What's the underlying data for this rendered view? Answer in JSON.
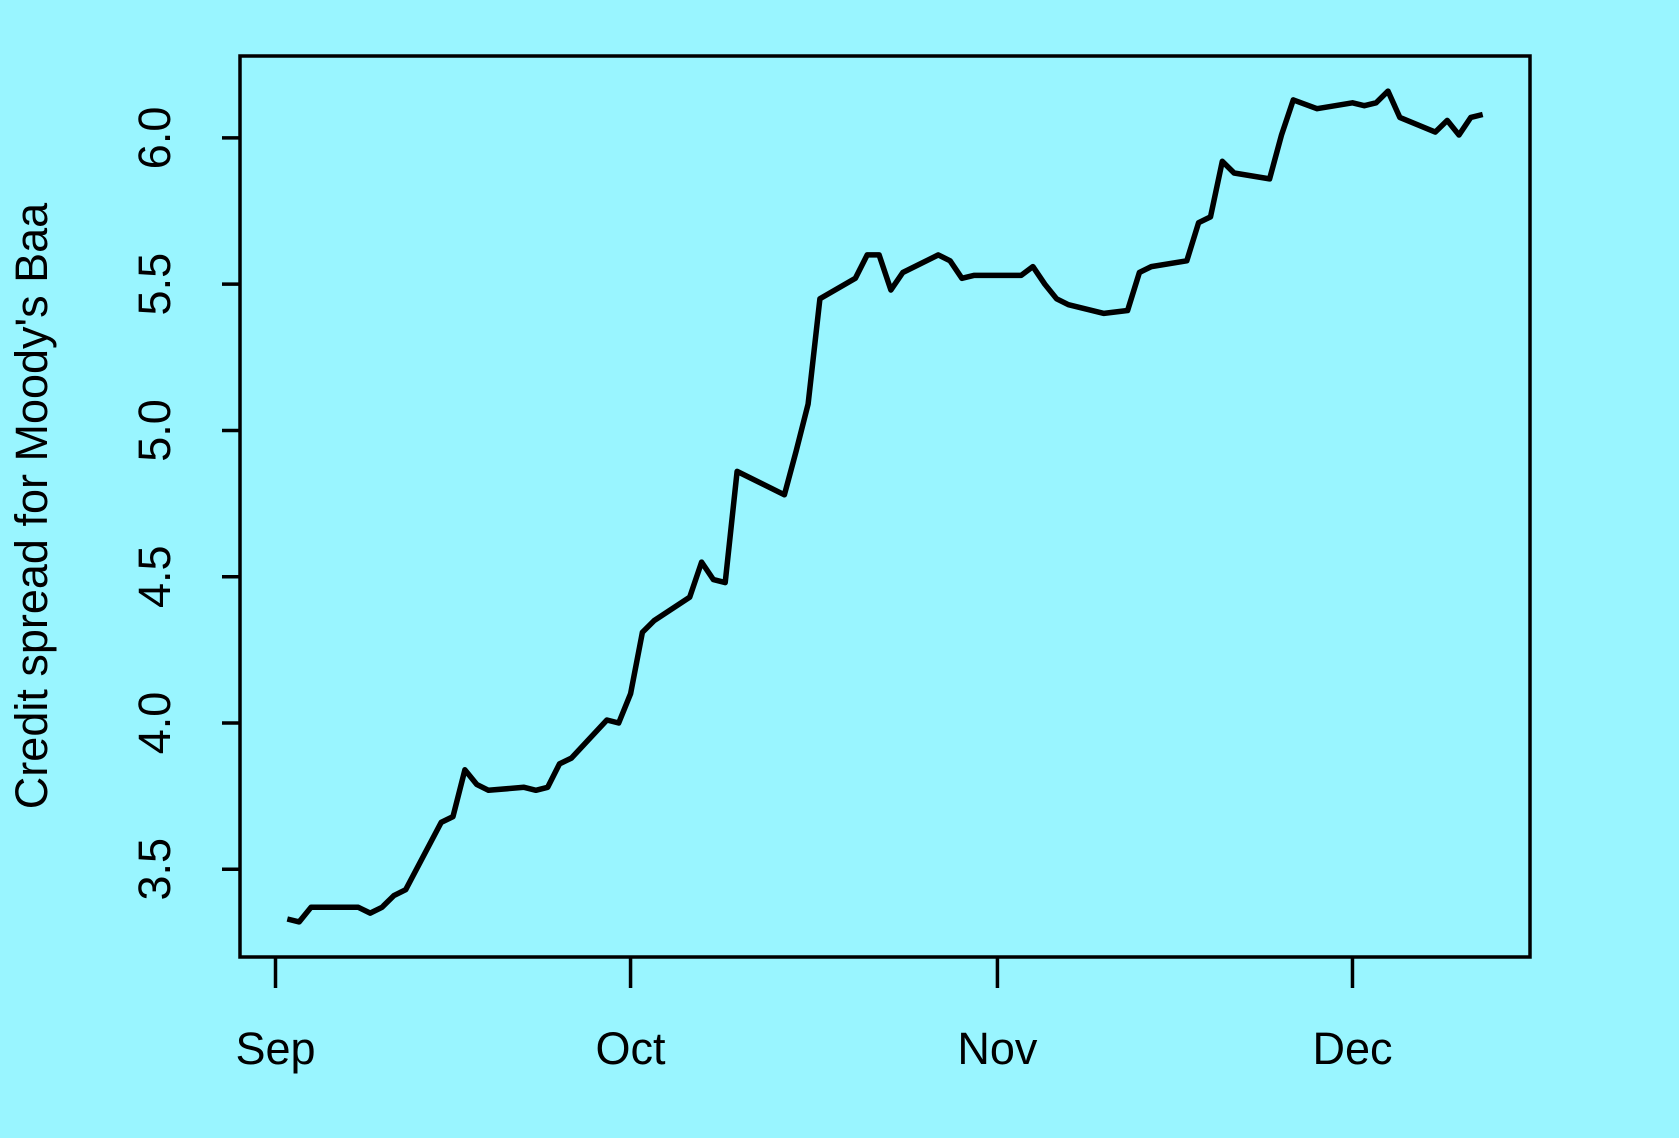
{
  "background_color": "#99F5FF",
  "line_color": "#000000",
  "chart_data": {
    "type": "line",
    "title": "",
    "xlabel": "",
    "ylabel": "Credit spread for Moody's Baa",
    "x_tick_labels": [
      "Sep",
      "Oct",
      "Nov",
      "Dec"
    ],
    "y_tick_labels": [
      "3.5",
      "4.0",
      "4.5",
      "5.0",
      "5.5",
      "6.0"
    ],
    "ylim": [
      3.2,
      6.28
    ],
    "grid": false,
    "legend": "none",
    "series": [
      {
        "x": [
          "2008-09-02",
          "2008-09-03",
          "2008-09-04",
          "2008-09-05",
          "2008-09-08",
          "2008-09-09",
          "2008-09-10",
          "2008-09-11",
          "2008-09-12",
          "2008-09-15",
          "2008-09-16",
          "2008-09-17",
          "2008-09-18",
          "2008-09-19",
          "2008-09-22",
          "2008-09-23",
          "2008-09-24",
          "2008-09-25",
          "2008-09-26",
          "2008-09-29",
          "2008-09-30",
          "2008-10-01",
          "2008-10-02",
          "2008-10-03",
          "2008-10-06",
          "2008-10-07",
          "2008-10-08",
          "2008-10-09",
          "2008-10-10",
          "2008-10-14",
          "2008-10-15",
          "2008-10-16",
          "2008-10-17",
          "2008-10-20",
          "2008-10-21",
          "2008-10-22",
          "2008-10-23",
          "2008-10-24",
          "2008-10-27",
          "2008-10-28",
          "2008-10-29",
          "2008-10-30",
          "2008-10-31",
          "2008-11-03",
          "2008-11-04",
          "2008-11-05",
          "2008-11-06",
          "2008-11-07",
          "2008-11-10",
          "2008-11-12",
          "2008-11-13",
          "2008-11-14",
          "2008-11-17",
          "2008-11-18",
          "2008-11-19",
          "2008-11-20",
          "2008-11-21",
          "2008-11-24",
          "2008-11-25",
          "2008-11-26",
          "2008-11-28",
          "2008-12-01",
          "2008-12-02",
          "2008-12-03",
          "2008-12-04",
          "2008-12-05",
          "2008-12-08",
          "2008-12-09",
          "2008-12-10",
          "2008-12-11",
          "2008-12-12"
        ],
        "y": [
          3.33,
          3.32,
          3.37,
          3.37,
          3.37,
          3.35,
          3.37,
          3.41,
          3.43,
          3.66,
          3.68,
          3.84,
          3.79,
          3.77,
          3.78,
          3.77,
          3.78,
          3.86,
          3.88,
          4.01,
          4.0,
          4.1,
          4.31,
          4.35,
          4.43,
          4.55,
          4.49,
          4.48,
          4.86,
          4.78,
          4.93,
          5.09,
          5.45,
          5.52,
          5.6,
          5.6,
          5.48,
          5.54,
          5.6,
          5.58,
          5.52,
          5.53,
          5.53,
          5.53,
          5.56,
          5.5,
          5.45,
          5.43,
          5.4,
          5.41,
          5.54,
          5.56,
          5.58,
          5.71,
          5.73,
          5.92,
          5.88,
          5.86,
          6.01,
          6.13,
          6.1,
          6.12,
          6.11,
          6.12,
          6.16,
          6.07,
          6.02,
          6.06,
          6.01,
          6.07,
          6.08
        ]
      }
    ]
  }
}
